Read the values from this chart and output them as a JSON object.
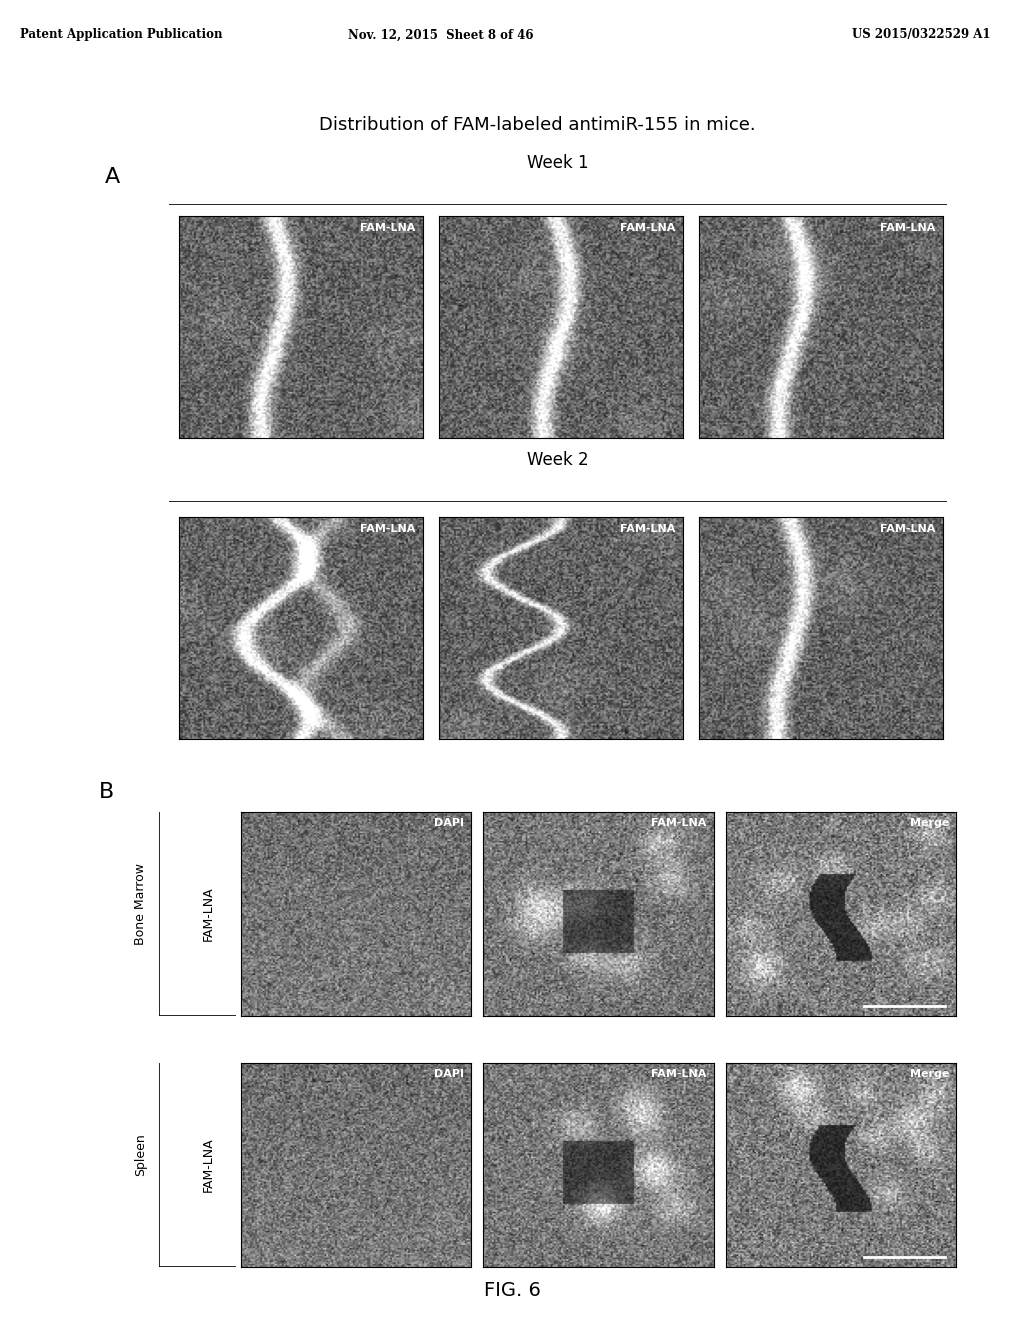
{
  "header_left": "Patent Application Publication",
  "header_mid": "Nov. 12, 2015  Sheet 8 of 46",
  "header_right": "US 2015/0322529 A1",
  "main_title": "Distribution of FAM-labeled antimiR-155 in mice.",
  "panel_A_label": "A",
  "panel_B_label": "B",
  "week1_label": "Week 1",
  "week2_label": "Week 2",
  "fig_label": "FIG. 6",
  "fam_lna_label": "FAM-LNA",
  "dapi_label": "DAPI",
  "merge_label": "Merge",
  "bone_marrow_label": "Bone Marrow",
  "spleen_label": "Spleen",
  "background_color": "#ffffff",
  "image_border": "#000000",
  "header_font_size": 8.5,
  "title_font_size": 13,
  "week_label_font_size": 12,
  "panel_label_font_size": 16,
  "img_label_font_size": 8,
  "side_label_font_size": 9,
  "fig_font_size": 14
}
